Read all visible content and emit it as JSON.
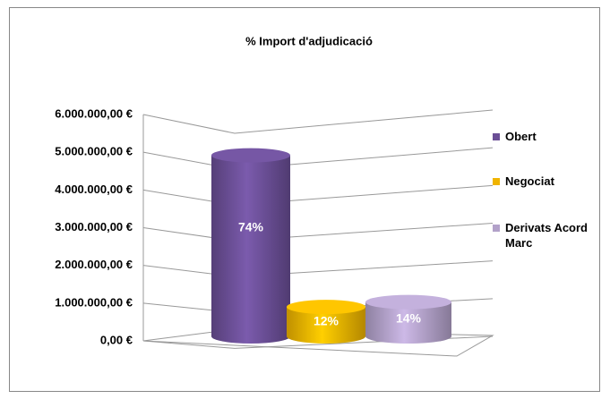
{
  "chart_data": {
    "type": "bar3d",
    "title": "%  Import d'adjudicació",
    "categories": [
      "Obert",
      "Negociat",
      "Derivats Acord Marc"
    ],
    "series": [
      {
        "name": "Obert",
        "color": "#6b4f96",
        "values": [
          4800000,
          null,
          null
        ],
        "value_labels": [
          "74%",
          null,
          null
        ]
      },
      {
        "name": "Negociat",
        "color": "#f0b400",
        "values": [
          null,
          780000,
          null
        ],
        "value_labels": [
          null,
          "12%",
          null
        ]
      },
      {
        "name": "Derivats Acord Marc",
        "color": "#b2a1c9",
        "values": [
          null,
          null,
          910000
        ],
        "value_labels": [
          null,
          null,
          "14%"
        ]
      }
    ],
    "ylim": [
      0,
      6000000
    ],
    "yticks": [
      {
        "value": 0,
        "label": "0,00 €"
      },
      {
        "value": 1000000,
        "label": "1.000.000,00 €"
      },
      {
        "value": 2000000,
        "label": "2.000.000,00 €"
      },
      {
        "value": 3000000,
        "label": "3.000.000,00 €"
      },
      {
        "value": 4000000,
        "label": "4.000.000,00 €"
      },
      {
        "value": 5000000,
        "label": "5.000.000,00 €"
      },
      {
        "value": 6000000,
        "label": "6.000.000,00 €"
      }
    ],
    "grid": true,
    "legend": "right"
  }
}
